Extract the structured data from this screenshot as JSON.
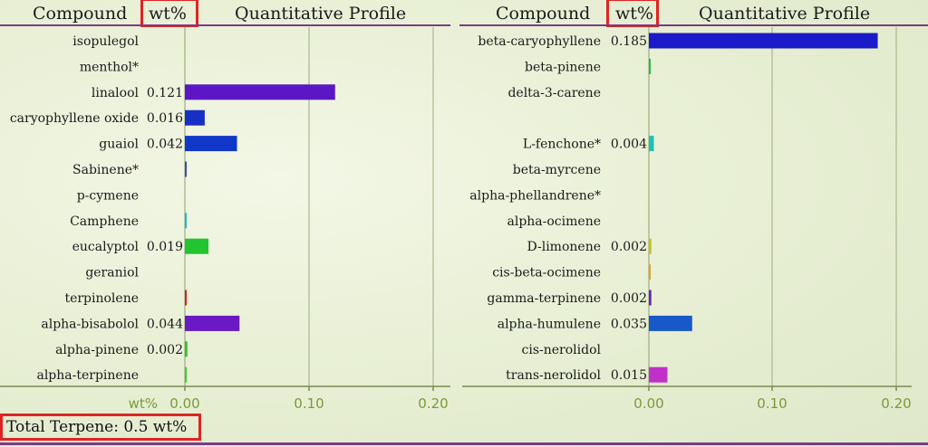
{
  "header": {
    "compound_label": "Compound",
    "wt_label": "wt%",
    "profile_label": "Quantitative Profile"
  },
  "axis": {
    "unit_label": "wt%"
  },
  "total_label": "Total Terpene: 0.5 wt%",
  "chart_data": [
    {
      "type": "bar",
      "orientation": "horizontal",
      "xlim": [
        0,
        0.2
      ],
      "ticks": [
        "0.00",
        "0.10",
        "0.20"
      ],
      "grid": true,
      "rows": [
        {
          "name": "isopulegol",
          "value": 0,
          "label": "",
          "color": ""
        },
        {
          "name": "menthol*",
          "value": 0,
          "label": "",
          "color": ""
        },
        {
          "name": "linalool",
          "value": 0.121,
          "label": "0.121",
          "color": "#5b17c4"
        },
        {
          "name": "caryophyllene oxide",
          "value": 0.016,
          "label": "0.016",
          "color": "#1730c4"
        },
        {
          "name": "guaiol",
          "value": 0.042,
          "label": "0.042",
          "color": "#1038c8"
        },
        {
          "name": "Sabinene*",
          "value": 0.0005,
          "label": "",
          "color": "#3a4ac0"
        },
        {
          "name": "p-cymene",
          "value": 0,
          "label": "",
          "color": ""
        },
        {
          "name": "Camphene",
          "value": 0.0005,
          "label": "",
          "color": "#20b8c8"
        },
        {
          "name": "eucalyptol",
          "value": 0.019,
          "label": "0.019",
          "color": "#22c430"
        },
        {
          "name": "geraniol",
          "value": 0,
          "label": "",
          "color": ""
        },
        {
          "name": "terpinolene",
          "value": 0.001,
          "label": "",
          "color": "#d62020"
        },
        {
          "name": "alpha-bisabolol",
          "value": 0.044,
          "label": "0.044",
          "color": "#6a1ac4"
        },
        {
          "name": "alpha-pinene",
          "value": 0.002,
          "label": "0.002",
          "color": "#30c030"
        },
        {
          "name": "alpha-terpinene",
          "value": 0.0015,
          "label": "",
          "color": "#40c840"
        }
      ]
    },
    {
      "type": "bar",
      "orientation": "horizontal",
      "xlim": [
        0,
        0.2
      ],
      "ticks": [
        "0.00",
        "0.10",
        "0.20"
      ],
      "grid": true,
      "rows": [
        {
          "name": "beta-caryophyllene",
          "value": 0.185,
          "label": "0.185",
          "color": "#1a1ac8"
        },
        {
          "name": "beta-pinene",
          "value": 0.0015,
          "label": "",
          "color": "#20c040"
        },
        {
          "name": "delta-3-carene",
          "value": 0,
          "label": "",
          "color": ""
        },
        {
          "name": "",
          "value": 0,
          "label": "",
          "color": ""
        },
        {
          "name": "L-fenchone*",
          "value": 0.004,
          "label": "0.004",
          "color": "#20c0b0"
        },
        {
          "name": "beta-myrcene",
          "value": 0,
          "label": "",
          "color": ""
        },
        {
          "name": "alpha-phellandrene*",
          "value": 0,
          "label": "",
          "color": ""
        },
        {
          "name": "alpha-ocimene",
          "value": 0,
          "label": "",
          "color": ""
        },
        {
          "name": "D-limonene",
          "value": 0.002,
          "label": "0.002",
          "color": "#c8c020"
        },
        {
          "name": "cis-beta-ocimene",
          "value": 0.001,
          "label": "",
          "color": "#e0a020"
        },
        {
          "name": "gamma-terpinene",
          "value": 0.002,
          "label": "0.002",
          "color": "#6a20c4"
        },
        {
          "name": "alpha-humulene",
          "value": 0.035,
          "label": "0.035",
          "color": "#1858c8"
        },
        {
          "name": "cis-nerolidol",
          "value": 0,
          "label": "",
          "color": ""
        },
        {
          "name": "trans-nerolidol",
          "value": 0.015,
          "label": "0.015",
          "color": "#c030c8"
        }
      ]
    }
  ]
}
